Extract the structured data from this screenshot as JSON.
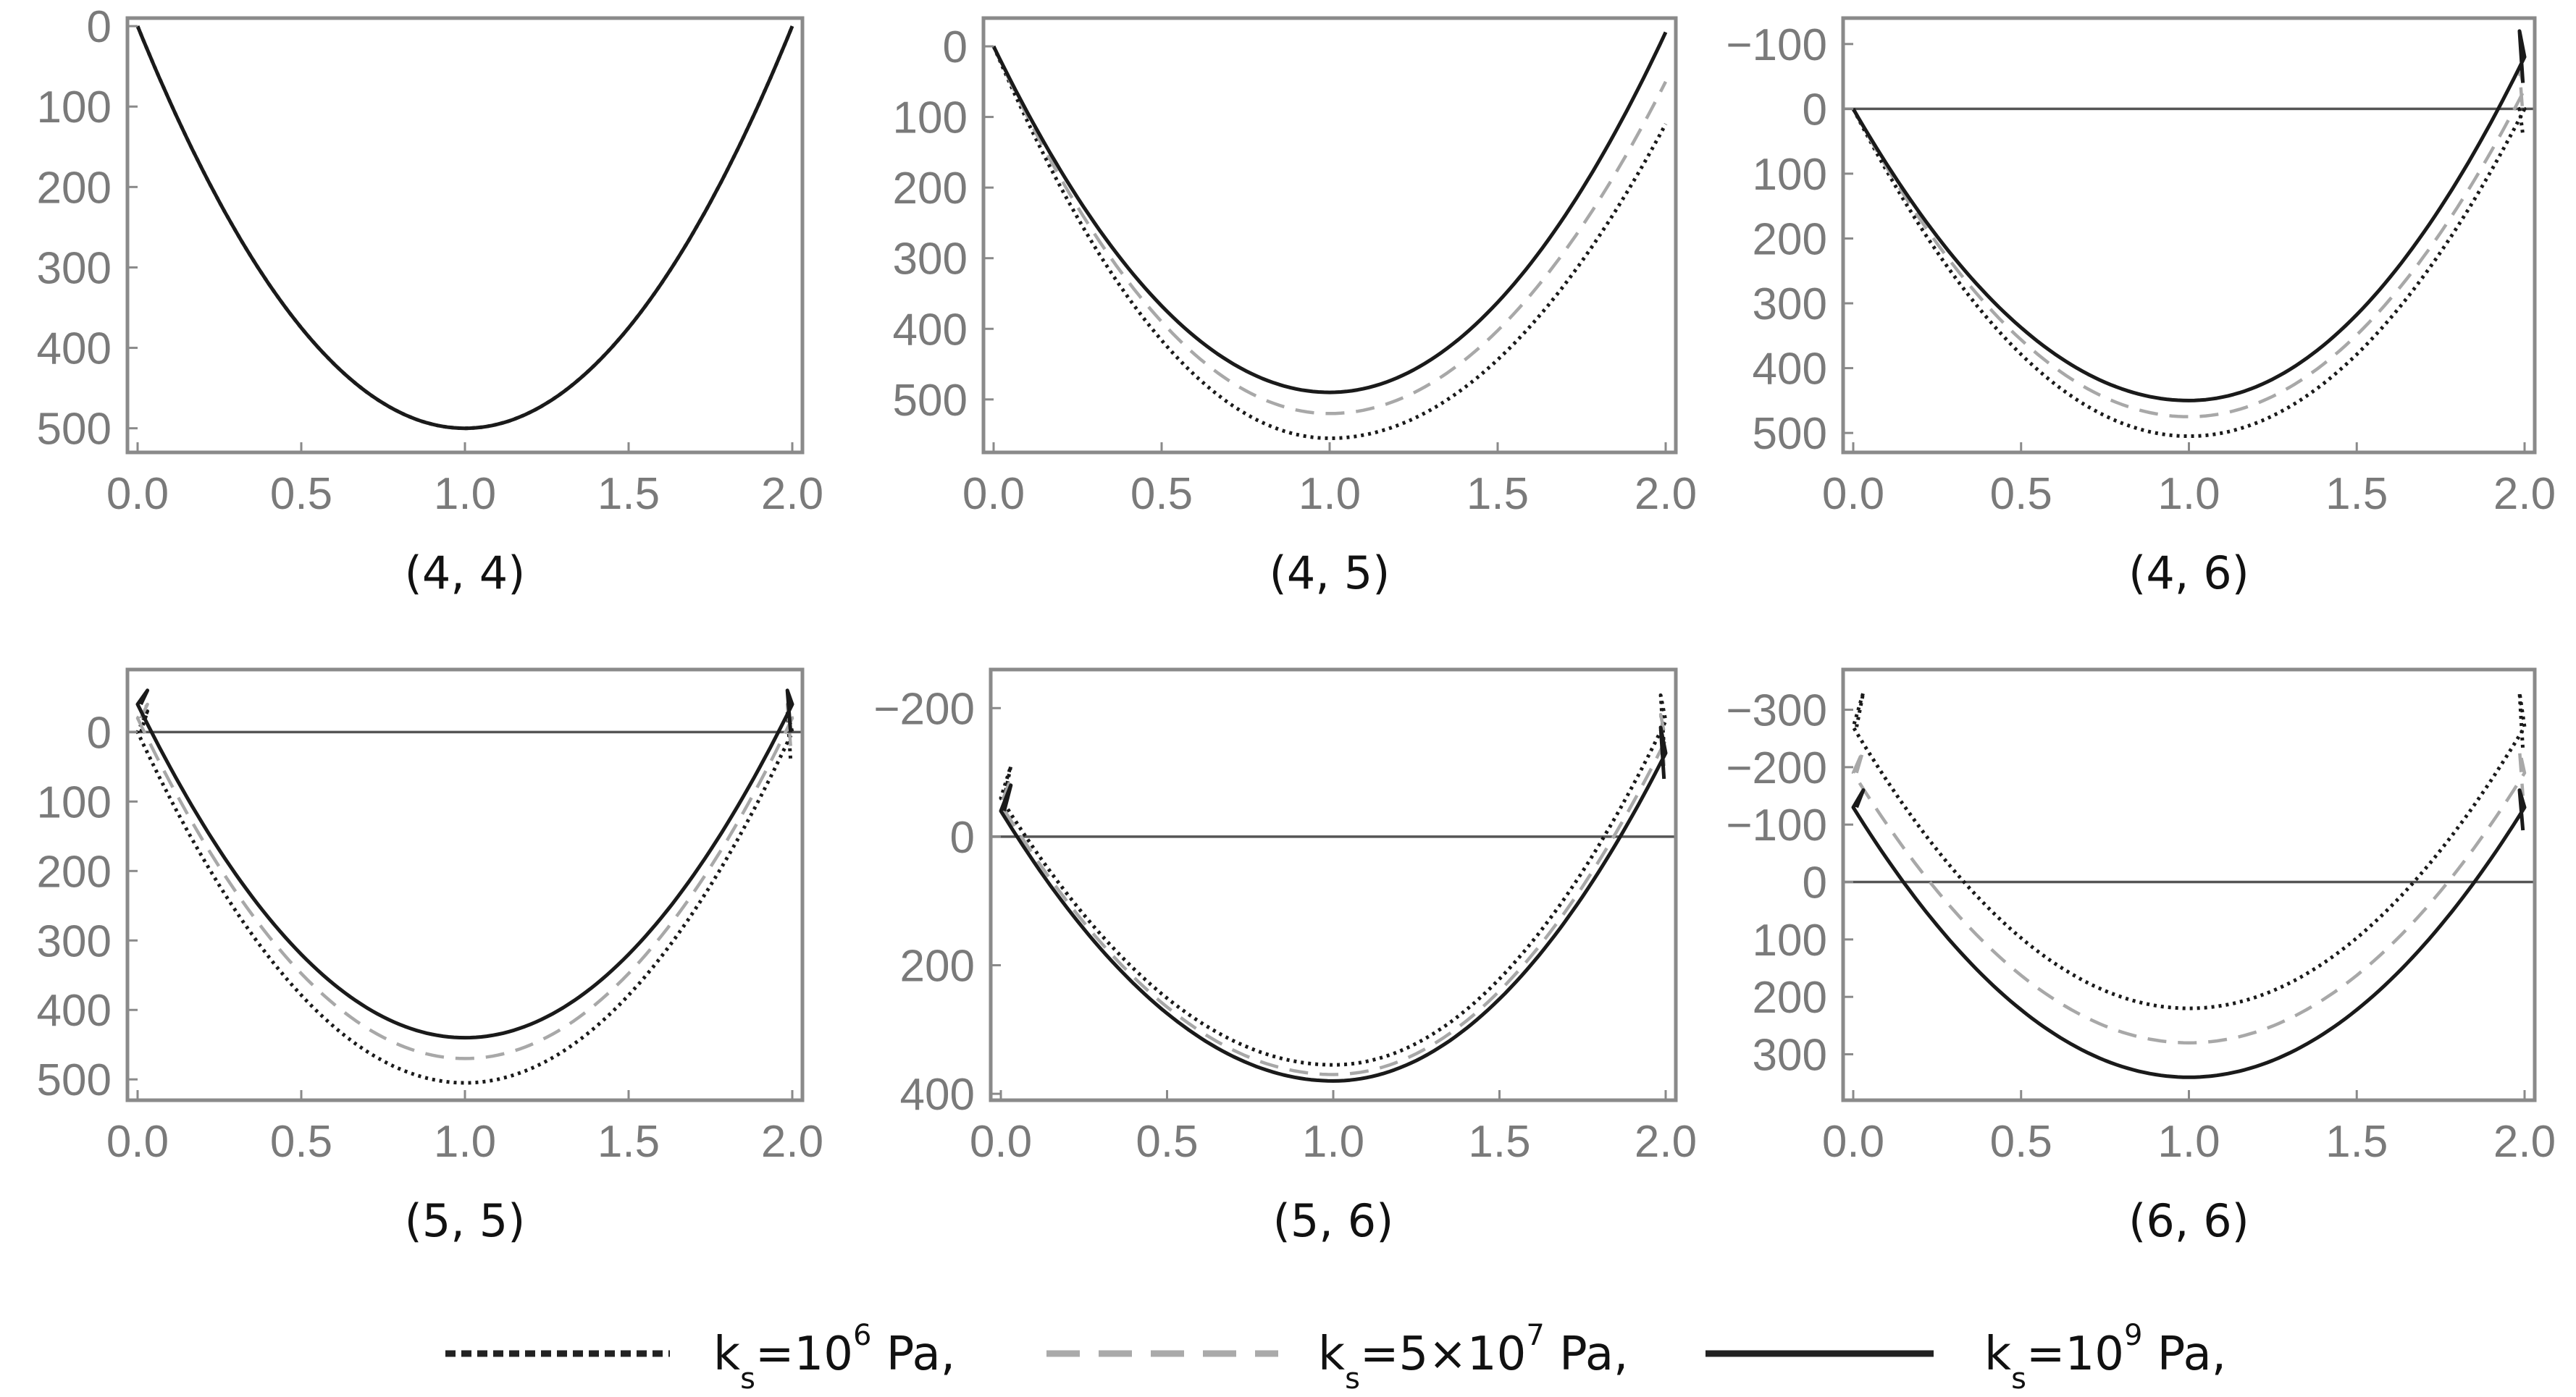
{
  "chart_data": [
    {
      "type": "line",
      "caption": "(4, 4)",
      "xlim": [
        0,
        2
      ],
      "ylim": [
        -10,
        530
      ],
      "x_ticks": [
        "0.0",
        "0.5",
        "1.0",
        "1.5",
        "2.0"
      ],
      "y_ticks": [
        {
          "value": 0,
          "label": "0"
        },
        {
          "value": 100,
          "label": "100"
        },
        {
          "value": 200,
          "label": "200"
        },
        {
          "value": 300,
          "label": "300"
        },
        {
          "value": 400,
          "label": "400"
        },
        {
          "value": 500,
          "label": "500"
        }
      ],
      "zero_line": false,
      "series": [
        {
          "name": "ks=10^6 Pa",
          "endpoints": [
            0,
            0
          ],
          "min": 500,
          "spike_left": null,
          "spike_right": null
        },
        {
          "name": "ks=5x10^7 Pa",
          "endpoints": [
            0,
            0
          ],
          "min": 500,
          "spike_left": null,
          "spike_right": null
        },
        {
          "name": "ks=10^9 Pa",
          "endpoints": [
            0,
            0
          ],
          "min": 500,
          "spike_left": null,
          "spike_right": null
        }
      ]
    },
    {
      "type": "line",
      "caption": "(4, 5)",
      "xlim": [
        0,
        2
      ],
      "ylim": [
        -40,
        575
      ],
      "x_ticks": [
        "0.0",
        "0.5",
        "1.0",
        "1.5",
        "2.0"
      ],
      "y_ticks": [
        {
          "value": 0,
          "label": "0"
        },
        {
          "value": 100,
          "label": "100"
        },
        {
          "value": 200,
          "label": "200"
        },
        {
          "value": 300,
          "label": "300"
        },
        {
          "value": 400,
          "label": "400"
        },
        {
          "value": 500,
          "label": "500"
        }
      ],
      "zero_line": false,
      "series": [
        {
          "name": "ks=10^6 Pa",
          "endpoints": [
            0,
            110
          ],
          "min": 555,
          "spike_left": null,
          "spike_right": null
        },
        {
          "name": "ks=5x10^7 Pa",
          "endpoints": [
            0,
            50
          ],
          "min": 520,
          "spike_left": null,
          "spike_right": null
        },
        {
          "name": "ks=10^9 Pa",
          "endpoints": [
            0,
            -20
          ],
          "min": 490,
          "spike_left": null,
          "spike_right": null
        }
      ]
    },
    {
      "type": "line",
      "caption": "(4, 6)",
      "xlim": [
        0,
        2
      ],
      "ylim": [
        -140,
        530
      ],
      "x_ticks": [
        "0.0",
        "0.5",
        "1.0",
        "1.5",
        "2.0"
      ],
      "y_ticks": [
        {
          "value": -100,
          "label": "−100"
        },
        {
          "value": 0,
          "label": "0"
        },
        {
          "value": 100,
          "label": "100"
        },
        {
          "value": 200,
          "label": "200"
        },
        {
          "value": 300,
          "label": "300"
        },
        {
          "value": 400,
          "label": "400"
        },
        {
          "value": 500,
          "label": "500"
        }
      ],
      "zero_line": true,
      "series": [
        {
          "name": "ks=10^6 Pa",
          "endpoints": [
            0,
            0
          ],
          "min": 505,
          "spike_left": null,
          "spike_right": 0
        },
        {
          "name": "ks=5x10^7 Pa",
          "endpoints": [
            0,
            -30
          ],
          "min": 475,
          "spike_left": null,
          "spike_right": -60
        },
        {
          "name": "ks=10^9 Pa",
          "endpoints": [
            0,
            -80
          ],
          "min": 450,
          "spike_left": null,
          "spike_right": -120
        }
      ]
    },
    {
      "type": "line",
      "caption": "(5, 5)",
      "xlim": [
        0,
        2
      ],
      "ylim": [
        -90,
        530
      ],
      "x_ticks": [
        "0.0",
        "0.5",
        "1.0",
        "1.5",
        "2.0"
      ],
      "y_ticks": [
        {
          "value": 0,
          "label": "0"
        },
        {
          "value": 100,
          "label": "100"
        },
        {
          "value": 200,
          "label": "200"
        },
        {
          "value": 300,
          "label": "300"
        },
        {
          "value": 400,
          "label": "400"
        },
        {
          "value": 500,
          "label": "500"
        }
      ],
      "zero_line": true,
      "series": [
        {
          "name": "ks=10^6 Pa",
          "endpoints": [
            0,
            0
          ],
          "min": 505,
          "spike_left": -30,
          "spike_right": -30
        },
        {
          "name": "ks=5x10^7 Pa",
          "endpoints": [
            -20,
            -20
          ],
          "min": 470,
          "spike_left": -40,
          "spike_right": -40
        },
        {
          "name": "ks=10^9 Pa",
          "endpoints": [
            -40,
            -40
          ],
          "min": 440,
          "spike_left": -60,
          "spike_right": -60
        }
      ]
    },
    {
      "type": "line",
      "caption": "(5, 6)",
      "xlim": [
        0,
        2
      ],
      "ylim": [
        -260,
        410
      ],
      "x_ticks": [
        "0.0",
        "0.5",
        "1.0",
        "1.5",
        "2.0"
      ],
      "y_ticks": [
        {
          "value": -200,
          "label": "−200"
        },
        {
          "value": 0,
          "label": "0"
        },
        {
          "value": 200,
          "label": "200"
        },
        {
          "value": 400,
          "label": "400"
        }
      ],
      "zero_line": true,
      "series": [
        {
          "name": "ks=10^6 Pa",
          "endpoints": [
            -60,
            -180
          ],
          "min": 355,
          "spike_left": -110,
          "spike_right": -220
        },
        {
          "name": "ks=5x10^7 Pa",
          "endpoints": [
            -50,
            -150
          ],
          "min": 370,
          "spike_left": -90,
          "spike_right": -190
        },
        {
          "name": "ks=10^9 Pa",
          "endpoints": [
            -40,
            -130
          ],
          "min": 380,
          "spike_left": -80,
          "spike_right": -170
        }
      ]
    },
    {
      "type": "line",
      "caption": "(6, 6)",
      "xlim": [
        0,
        2
      ],
      "ylim": [
        -370,
        380
      ],
      "x_ticks": [
        "0.0",
        "0.5",
        "1.0",
        "1.5",
        "2.0"
      ],
      "y_ticks": [
        {
          "value": -300,
          "label": "−300"
        },
        {
          "value": -200,
          "label": "−200"
        },
        {
          "value": -100,
          "label": "−100"
        },
        {
          "value": 0,
          "label": "0"
        },
        {
          "value": 100,
          "label": "100"
        },
        {
          "value": 200,
          "label": "200"
        },
        {
          "value": 300,
          "label": "300"
        }
      ],
      "zero_line": true,
      "series": [
        {
          "name": "ks=10^6 Pa",
          "endpoints": [
            -270,
            -270
          ],
          "min": 220,
          "spike_left": -330,
          "spike_right": -330
        },
        {
          "name": "ks=5x10^7 Pa",
          "endpoints": [
            -190,
            -190
          ],
          "min": 280,
          "spike_left": -230,
          "spike_right": -230
        },
        {
          "name": "ks=10^9 Pa",
          "endpoints": [
            -130,
            -130
          ],
          "min": 340,
          "spike_left": -160,
          "spike_right": -160
        }
      ]
    }
  ],
  "legend": {
    "position": "bottom-center",
    "items": [
      {
        "style": "dotted",
        "color": "#222222",
        "main": "k",
        "sub": "s",
        "rest": "=10",
        "sup": "6",
        "unit": " Pa,"
      },
      {
        "style": "dashed",
        "color": "#aaaaaa",
        "main": "k",
        "sub": "s",
        "rest": "=5×10",
        "sup": "7",
        "unit": " Pa,"
      },
      {
        "style": "solid",
        "color": "#222222",
        "main": "k",
        "sub": "s",
        "rest": "=10",
        "sup": "9",
        "unit": " Pa,"
      }
    ]
  },
  "series_styles": [
    {
      "color": "#1a1a1a",
      "dash": "4 6",
      "width": 5
    },
    {
      "color": "#a8a8a8",
      "dash": "26 16",
      "width": 4.5
    },
    {
      "color": "#1a1a1a",
      "dash": "",
      "width": 5
    }
  ]
}
